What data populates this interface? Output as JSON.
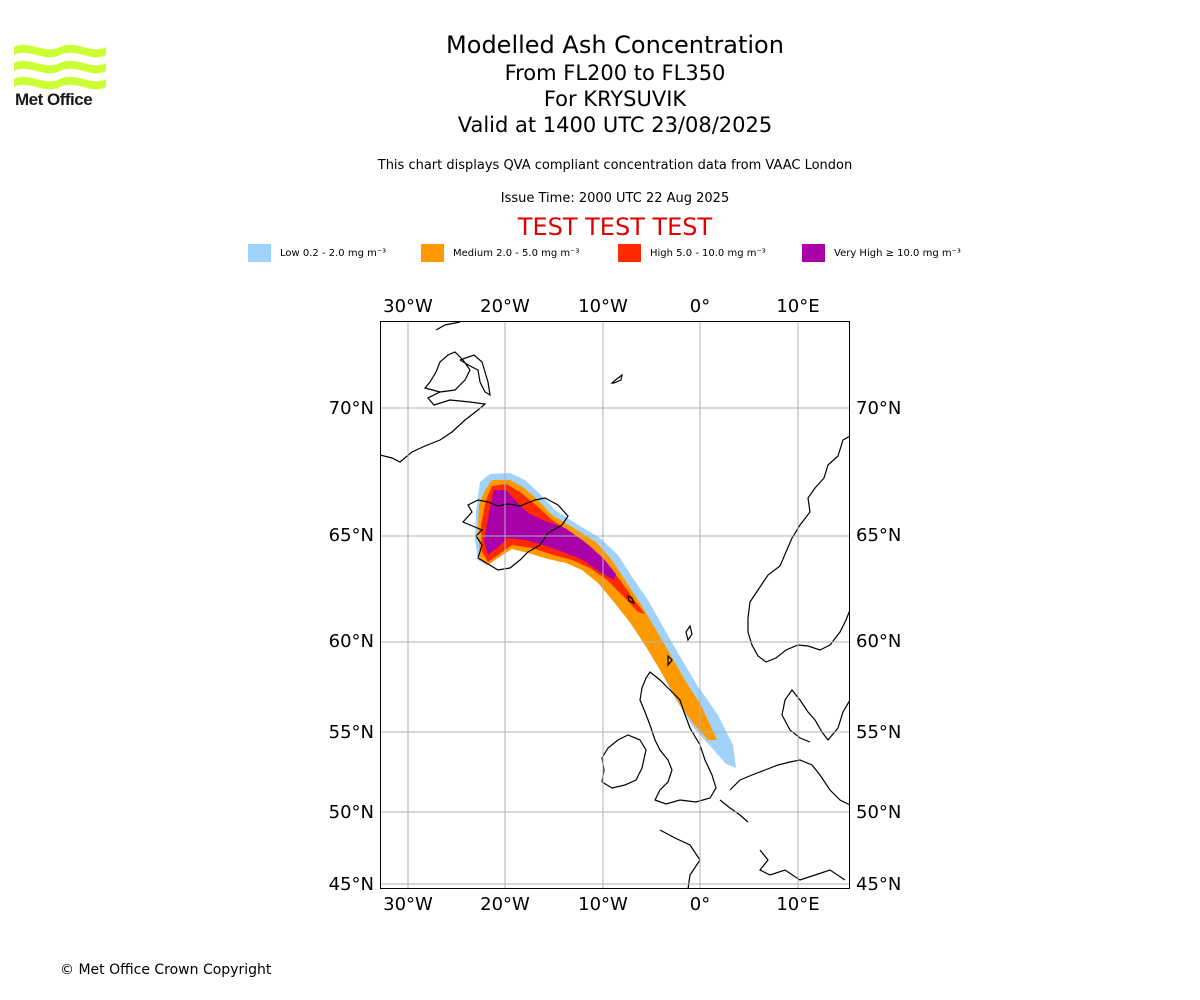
{
  "logo": {
    "text": "Met Office"
  },
  "title": {
    "line1": "Modelled Ash Concentration",
    "line2": "From FL200 to FL350",
    "line3": "For KRYSUVIK",
    "line4": "Valid at 1400 UTC 23/08/2025"
  },
  "subtitle": "This chart displays QVA compliant concentration data from VAAC London",
  "issue_time": "Issue Time: 2000 UTC 22 Aug 2025",
  "test_banner": "TEST TEST TEST",
  "legend": [
    {
      "label": "Low 0.2 - 2.0 mg m⁻³",
      "color": "#a0d2fa"
    },
    {
      "label": "Medium 2.0 - 5.0 mg m⁻³",
      "color": "#ff9900"
    },
    {
      "label": "High 5.0 - 10.0 mg m⁻³",
      "color": "#ff2a00"
    },
    {
      "label": "Very High ≥ 10.0 mg m⁻³",
      "color": "#aa00aa"
    }
  ],
  "axes": {
    "lon_ticks": [
      "30°W",
      "20°W",
      "10°W",
      "0°",
      "10°E"
    ],
    "lat_ticks": [
      "70°N",
      "65°N",
      "60°N",
      "55°N",
      "50°N",
      "45°N"
    ]
  },
  "copyright": "© Met Office Crown Copyright"
}
